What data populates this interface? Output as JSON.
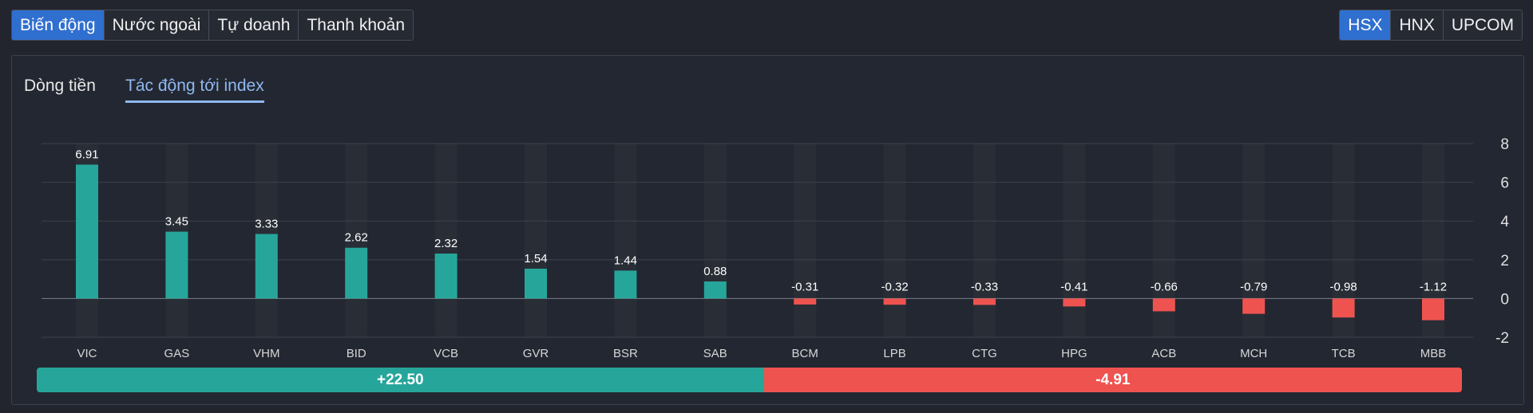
{
  "top_tabs": [
    "Biến động",
    "Nước ngoài",
    "Tự doanh",
    "Thanh khoản"
  ],
  "top_tabs_active": 0,
  "exchange_tabs": [
    "HSX",
    "HNX",
    "UPCOM"
  ],
  "exchange_tabs_active": 0,
  "sub_tabs": {
    "cashflow": "Dòng tiền",
    "index_impact": "Tác động tới index"
  },
  "colors": {
    "positive": "#26a69a",
    "negative": "#ef5350",
    "accent": "#2f6fd0",
    "active_subtab": "#8fb8f0"
  },
  "chart_data": {
    "type": "bar",
    "categories": [
      "VIC",
      "GAS",
      "VHM",
      "BID",
      "VCB",
      "GVR",
      "BSR",
      "SAB",
      "BCM",
      "LPB",
      "CTG",
      "HPG",
      "ACB",
      "MCH",
      "TCB",
      "MBB"
    ],
    "values": [
      6.91,
      3.45,
      3.33,
      2.62,
      2.32,
      1.54,
      1.44,
      0.88,
      -0.31,
      -0.32,
      -0.33,
      -0.41,
      -0.66,
      -0.79,
      -0.98,
      -1.12
    ],
    "value_labels": [
      "6.91",
      "3.45",
      "3.33",
      "2.62",
      "2.32",
      "1.54",
      "1.44",
      "0.88",
      "-0.31",
      "-0.32",
      "-0.33",
      "-0.41",
      "-0.66",
      "-0.79",
      "-0.98",
      "-1.12"
    ],
    "ylim": [
      -2,
      8
    ],
    "yticks": [
      -2,
      0,
      2,
      4,
      6,
      8
    ],
    "ytick_labels": [
      "-2",
      "0",
      "2",
      "4",
      "6",
      "8"
    ],
    "grid": true,
    "y_axis_position": "right"
  },
  "summary": {
    "positive_total": 22.5,
    "positive_label": "+22.50",
    "negative_total": -4.91,
    "negative_label": "-4.91"
  }
}
